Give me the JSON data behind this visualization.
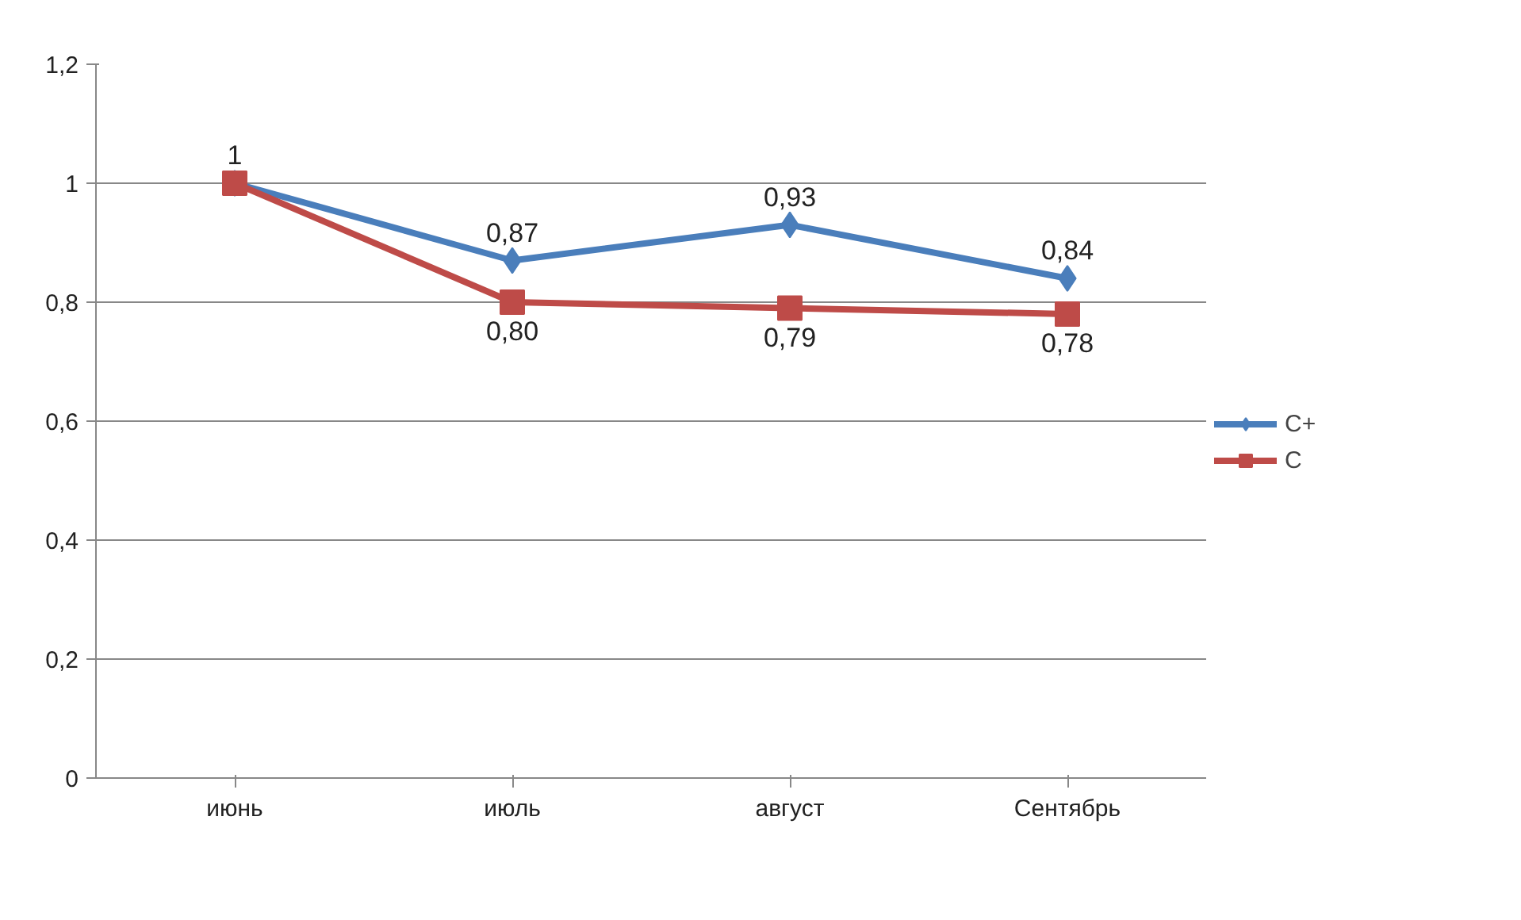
{
  "chart_data": {
    "type": "line",
    "categories": [
      "июнь",
      "июль",
      "август",
      "Сентябрь"
    ],
    "series": [
      {
        "name": "C+",
        "color": "#4a7ebb",
        "marker": "diamond",
        "values": [
          1,
          0.87,
          0.93,
          0.84
        ],
        "value_labels": [
          "1",
          "0,87",
          "0,93",
          "0,84"
        ]
      },
      {
        "name": "C",
        "color": "#be4b48",
        "marker": "square",
        "values": [
          1,
          0.8,
          0.79,
          0.78
        ],
        "value_labels": [
          null,
          "0,80",
          "0,79",
          "0,78"
        ]
      }
    ],
    "ylim": [
      0,
      1.2
    ],
    "yticks": [
      {
        "value": 0,
        "label": "0"
      },
      {
        "value": 0.2,
        "label": "0,2"
      },
      {
        "value": 0.4,
        "label": "0,4"
      },
      {
        "value": 0.6,
        "label": "0,6"
      },
      {
        "value": 0.8,
        "label": "0,8"
      },
      {
        "value": 1,
        "label": "1"
      },
      {
        "value": 1.2,
        "label": "1,2"
      }
    ],
    "grid": "y",
    "legend": "right",
    "line_style": "solid"
  }
}
